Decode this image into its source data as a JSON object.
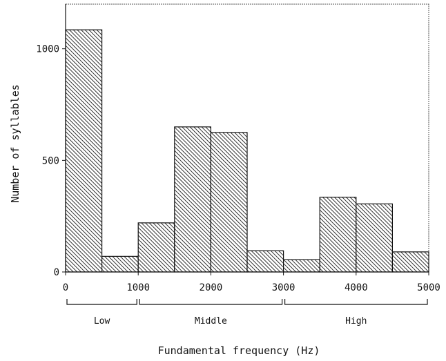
{
  "chart_data": {
    "type": "bar",
    "title": "",
    "xlabel": "Fundamental frequency (Hz)",
    "ylabel": "Number of syllables",
    "x_bin_edges": [
      0,
      500,
      1000,
      1500,
      2000,
      2500,
      3000,
      3500,
      4000,
      4500,
      5000
    ],
    "values": [
      1085,
      70,
      220,
      650,
      625,
      95,
      55,
      335,
      305,
      90
    ],
    "xlim": [
      0,
      5000
    ],
    "ylim": [
      0,
      1200
    ],
    "x_ticks": [
      "0",
      "1000",
      "2000",
      "3000",
      "4000",
      "5000"
    ],
    "y_ticks": [
      "0",
      "500",
      "1000"
    ],
    "groups": [
      {
        "label": "Low",
        "range": [
          0,
          1000
        ]
      },
      {
        "label": "Middle",
        "range": [
          1000,
          3000
        ]
      },
      {
        "label": "High",
        "range": [
          3000,
          5000
        ]
      }
    ],
    "grid": false,
    "bar_fill": "hatched",
    "colors": {
      "bar_stroke": "#111111",
      "hatch": "#444444",
      "frame": "#555555"
    }
  }
}
